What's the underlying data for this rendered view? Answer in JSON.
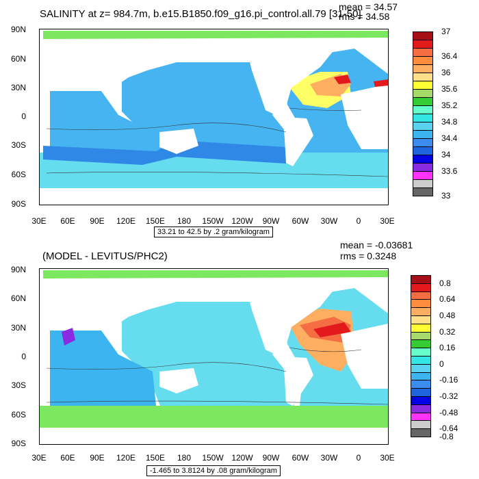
{
  "top": {
    "title": "SALINITY at z= 984.7m, b.e15.B1850.f09_g16.pi_control.all.79 [31-50]",
    "mean": "mean = 34.57",
    "rms": "rms = 34.58",
    "range": "33.21 to 42.5 by .2 gram/kilogram",
    "lat_labels": [
      "90N",
      "60N",
      "30N",
      "0",
      "30S",
      "60S",
      "90S"
    ],
    "lon_labels": [
      "30E",
      "60E",
      "90E",
      "120E",
      "150E",
      "180",
      "150W",
      "120W",
      "90W",
      "60W",
      "30W",
      "0",
      "30E"
    ],
    "colorbar": {
      "colors": [
        "#a50f15",
        "#e31a1c",
        "#f46d43",
        "#fd8d3c",
        "#fdae61",
        "#fee08b",
        "#ffff33",
        "#a6d96a",
        "#33cc33",
        "#66ffcc",
        "#33e6e6",
        "#5ad2f0",
        "#3cb4f0",
        "#3c8cf0",
        "#1e64dc",
        "#0000e6",
        "#8a2be2",
        "#ff33ff",
        "#cccccc",
        "#666666"
      ],
      "labels": [
        "37",
        "36.4",
        "36",
        "35.6",
        "35.2",
        "34.8",
        "34.4",
        "34",
        "33.6",
        "33"
      ],
      "label_slots": [
        0,
        3,
        5,
        7,
        9,
        11,
        13,
        15,
        17,
        20
      ]
    },
    "fill": {
      "ocean": "#46b4f0",
      "south": "#66ddee",
      "band": "#2f88e6",
      "arctic": "#7be85f",
      "atlantic_hi": "#fdae61",
      "atlantic_mid": "#ffff66",
      "med": "#e31a1c"
    }
  },
  "bottom": {
    "title": "(MODEL - LEVITUS/PHC2)",
    "mean": "mean = -0.03681",
    "rms": "rms = 0.3248",
    "range": "-1.465 to 3.8124 by .08 gram/kilogram",
    "lat_labels": [
      "90N",
      "60N",
      "30N",
      "0",
      "30S",
      "60S",
      "90S"
    ],
    "lon_labels": [
      "30E",
      "60E",
      "90E",
      "120E",
      "150E",
      "180",
      "150W",
      "120W",
      "90W",
      "60W",
      "30W",
      "0",
      "30E"
    ],
    "colorbar": {
      "colors": [
        "#a50f15",
        "#e31a1c",
        "#f46d43",
        "#fd8d3c",
        "#fdae61",
        "#fee08b",
        "#ffff33",
        "#a6d96a",
        "#33cc33",
        "#66ffcc",
        "#33e6e6",
        "#5ad2f0",
        "#3cb4f0",
        "#3c8cf0",
        "#1e64dc",
        "#0000e6",
        "#8a2be2",
        "#ff33ff",
        "#cccccc",
        "#666666"
      ],
      "labels": [
        "0.8",
        "0.64",
        "0.48",
        "0.32",
        "0.16",
        "0",
        "-0.16",
        "-0.32",
        "-0.48",
        "-0.64",
        "-0.8"
      ],
      "label_slots": [
        1,
        3,
        5,
        7,
        9,
        11,
        13,
        15,
        17,
        19,
        20
      ]
    },
    "fill": {
      "ocean": "#66ddee",
      "south": "#7be85f",
      "band": "#3cb4f0",
      "arctic": "#7be85f",
      "atlantic_hi": "#f46d43",
      "atlantic_mid": "#fdae61",
      "med": "#e31a1c"
    }
  }
}
